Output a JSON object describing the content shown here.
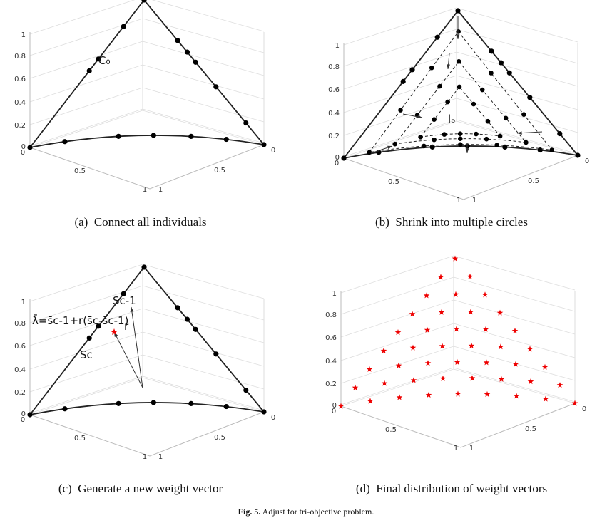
{
  "panels": [
    {
      "label": "(a)",
      "caption": "Connect all individuals",
      "zticks": [
        "0",
        "0.2",
        "0.4",
        "0.6",
        "0.8",
        "1"
      ],
      "xticks": [
        "0",
        "0.5",
        "1"
      ],
      "yticks": [
        "1",
        "0.5",
        "0"
      ],
      "annotations": [
        "C₀"
      ]
    },
    {
      "label": "(b)",
      "caption": "Shrink into multiple circles",
      "zticks": [
        "0",
        "0.2",
        "0.4",
        "0.6",
        "0.8",
        "1"
      ],
      "xticks": [
        "0",
        "0.5",
        "1"
      ],
      "yticks": [
        "1",
        "0.5",
        "0"
      ],
      "annotations": [
        "lₚ"
      ]
    },
    {
      "label": "(c)",
      "caption": "Generate a new weight vector",
      "zticks": [
        "0",
        "0.2",
        "0.4",
        "0.6",
        "0.8",
        "1"
      ],
      "xticks": [
        "0",
        "0.5",
        "1"
      ],
      "yticks": [
        "1",
        "0.5",
        "0"
      ],
      "annotations": [
        "λ̄=s̄c-1+r(s̄c-s̄c-1)",
        "r",
        "Sc-1",
        "Sc"
      ]
    },
    {
      "label": "(d)",
      "caption": "Final distribution of weight vectors",
      "zticks": [
        "0",
        "0.2",
        "0.4",
        "0.6",
        "0.8",
        "1"
      ],
      "xticks": [
        "0",
        "0.5",
        "1"
      ],
      "yticks": [
        "1",
        "0.5",
        "0"
      ],
      "annotations": []
    }
  ],
  "figure_caption": {
    "label": "Fig. 5.",
    "text": "Adjust for tri-objective problem."
  }
}
